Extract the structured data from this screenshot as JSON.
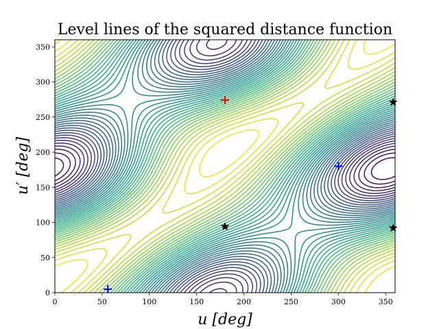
{
  "chart_data": {
    "type": "contour",
    "title": "Level lines of the squared distance function",
    "xlabel": "u [deg]",
    "ylabel": "u′ [deg]",
    "xlim": [
      0,
      360
    ],
    "ylim": [
      0,
      360
    ],
    "xticks": [
      0,
      50,
      100,
      150,
      200,
      250,
      300,
      350
    ],
    "yticks": [
      0,
      50,
      100,
      150,
      200,
      250,
      300,
      350
    ],
    "grid": false,
    "colormap": "viridis",
    "contour_levels": 40,
    "markers": [
      {
        "kind": "plus",
        "color": "#ff0000",
        "x": 180,
        "y": 274
      },
      {
        "kind": "plus",
        "color": "#0000ff",
        "x": 300,
        "y": 180
      },
      {
        "kind": "plus",
        "color": "#0000ff",
        "x": 56,
        "y": 5
      },
      {
        "kind": "star",
        "color": "#000000",
        "x": 180,
        "y": 94
      },
      {
        "kind": "star",
        "color": "#000000",
        "x": 358,
        "y": 271
      },
      {
        "kind": "star",
        "color": "#000000",
        "x": 358,
        "y": 92
      }
    ]
  }
}
